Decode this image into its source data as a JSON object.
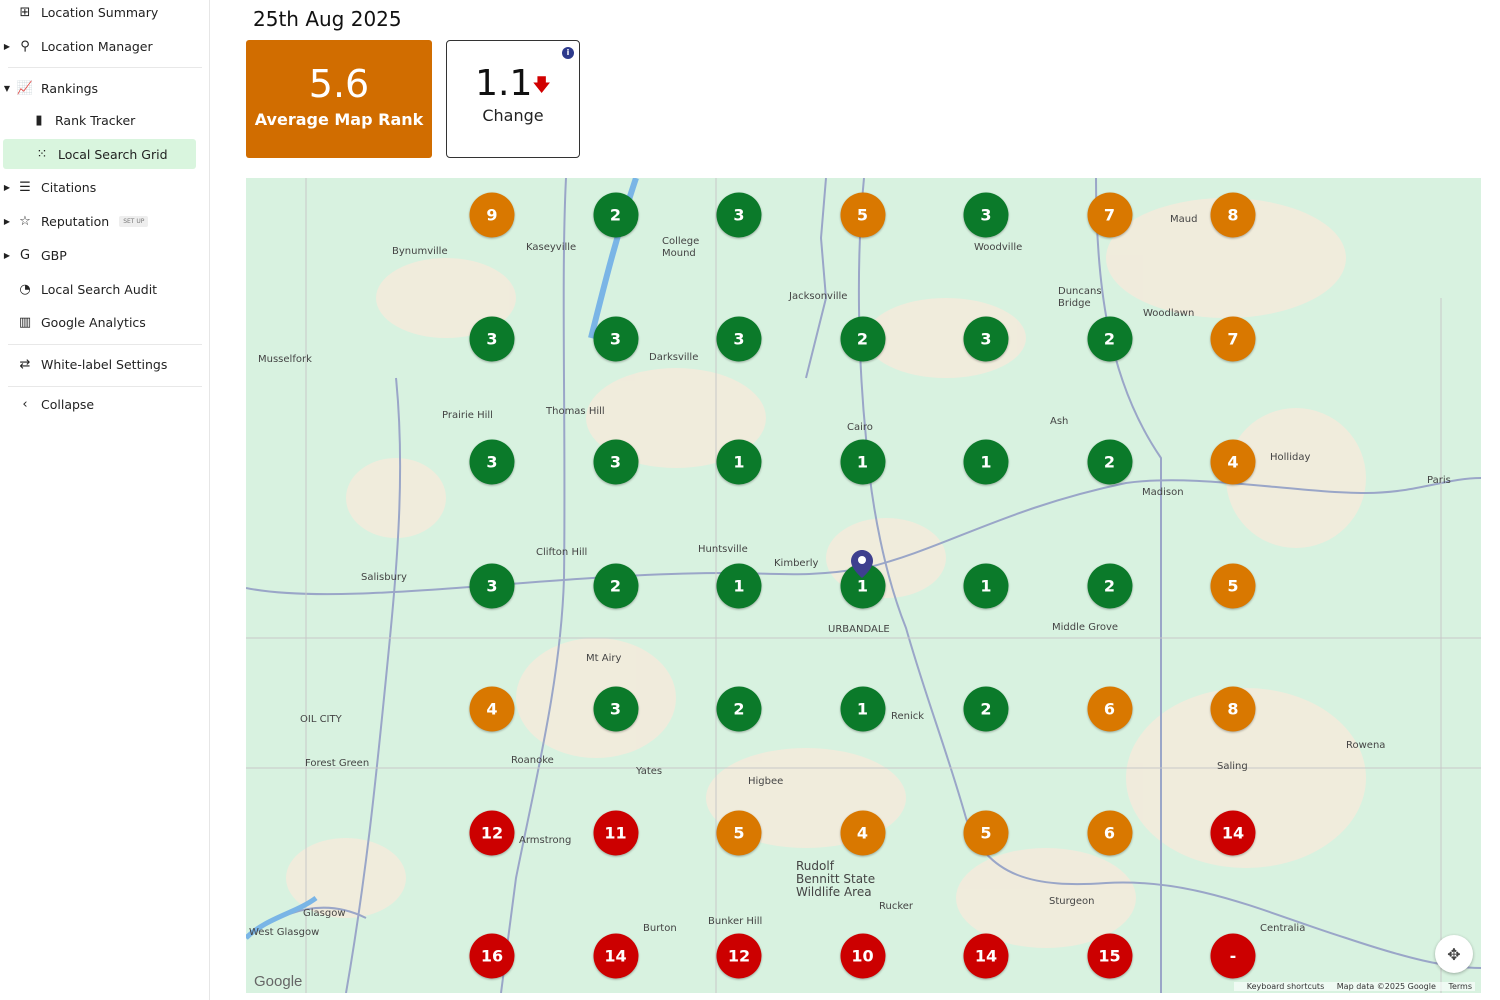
{
  "sidebar": {
    "items": [
      {
        "label": "Location Summary",
        "icon": "grid-icon"
      },
      {
        "label": "Location Manager",
        "icon": "location-pin-icon"
      },
      {
        "label": "Rankings",
        "icon": "rankings-chart-icon"
      },
      {
        "label": "Rank Tracker",
        "icon": "bar-chart-icon"
      },
      {
        "label": "Local Search Grid",
        "icon": "dot-grid-icon"
      },
      {
        "label": "Citations",
        "icon": "checklist-icon"
      },
      {
        "label": "Reputation",
        "icon": "star-icon",
        "badge": "SET UP"
      },
      {
        "label": "GBP",
        "icon": "google-icon"
      },
      {
        "label": "Local Search Audit",
        "icon": "gauge-icon"
      },
      {
        "label": "Google Analytics",
        "icon": "analytics-icon"
      },
      {
        "label": "White-label Settings",
        "icon": "sliders-icon"
      },
      {
        "label": "Collapse",
        "icon": "chevron-left-icon"
      }
    ]
  },
  "header": {
    "date": "25th Aug 2025"
  },
  "stats": {
    "average_rank": "5.6",
    "average_rank_label": "Average Map Rank",
    "change": "1.1",
    "change_direction": "down",
    "change_label": "Change"
  },
  "colors": {
    "green": "#0b7a2a",
    "orange": "#d97800",
    "red": "#cc0000",
    "card": "#d16d00"
  },
  "grid": [
    [
      "9",
      "2",
      "3",
      "5",
      "3",
      "7",
      "8"
    ],
    [
      "3",
      "3",
      "3",
      "2",
      "3",
      "2",
      "7"
    ],
    [
      "3",
      "3",
      "1",
      "1",
      "1",
      "2",
      "4"
    ],
    [
      "3",
      "2",
      "1",
      "1",
      "1",
      "2",
      "5"
    ],
    [
      "4",
      "3",
      "2",
      "1",
      "2",
      "6",
      "8"
    ],
    [
      "12",
      "11",
      "5",
      "4",
      "5",
      "6",
      "14"
    ],
    [
      "16",
      "14",
      "12",
      "10",
      "14",
      "15",
      "-"
    ]
  ],
  "map": {
    "places": [
      "Bynumville",
      "Kaseyville",
      "College Mound",
      "Woodville",
      "Maud",
      "Jacksonville",
      "Duncans Bridge",
      "Woodlawn",
      "Musselfork",
      "Darksville",
      "Prairie Hill",
      "Thomas Hill",
      "Cairo",
      "Ash",
      "Holliday",
      "Madison",
      "Paris",
      "Huntsville",
      "Kimberly",
      "Clifton Hill",
      "Salisbury",
      "URBANDALE",
      "Middle Grove",
      "Mt Airy",
      "OIL CITY",
      "Renick",
      "Forest Green",
      "Roanoke",
      "Yates",
      "Higbee",
      "Rowena",
      "Saling",
      "Rudolf Bennitt State Wildlife Area",
      "Glasgow",
      "West Glasgow",
      "Rucker",
      "Sturgeon",
      "Bunker Hill",
      "Burton",
      "Centralia",
      "Armstrong"
    ],
    "footer": {
      "shortcuts": "Keyboard shortcuts",
      "data": "Map data ©2025 Google",
      "terms": "Terms"
    },
    "logo": "Google"
  }
}
